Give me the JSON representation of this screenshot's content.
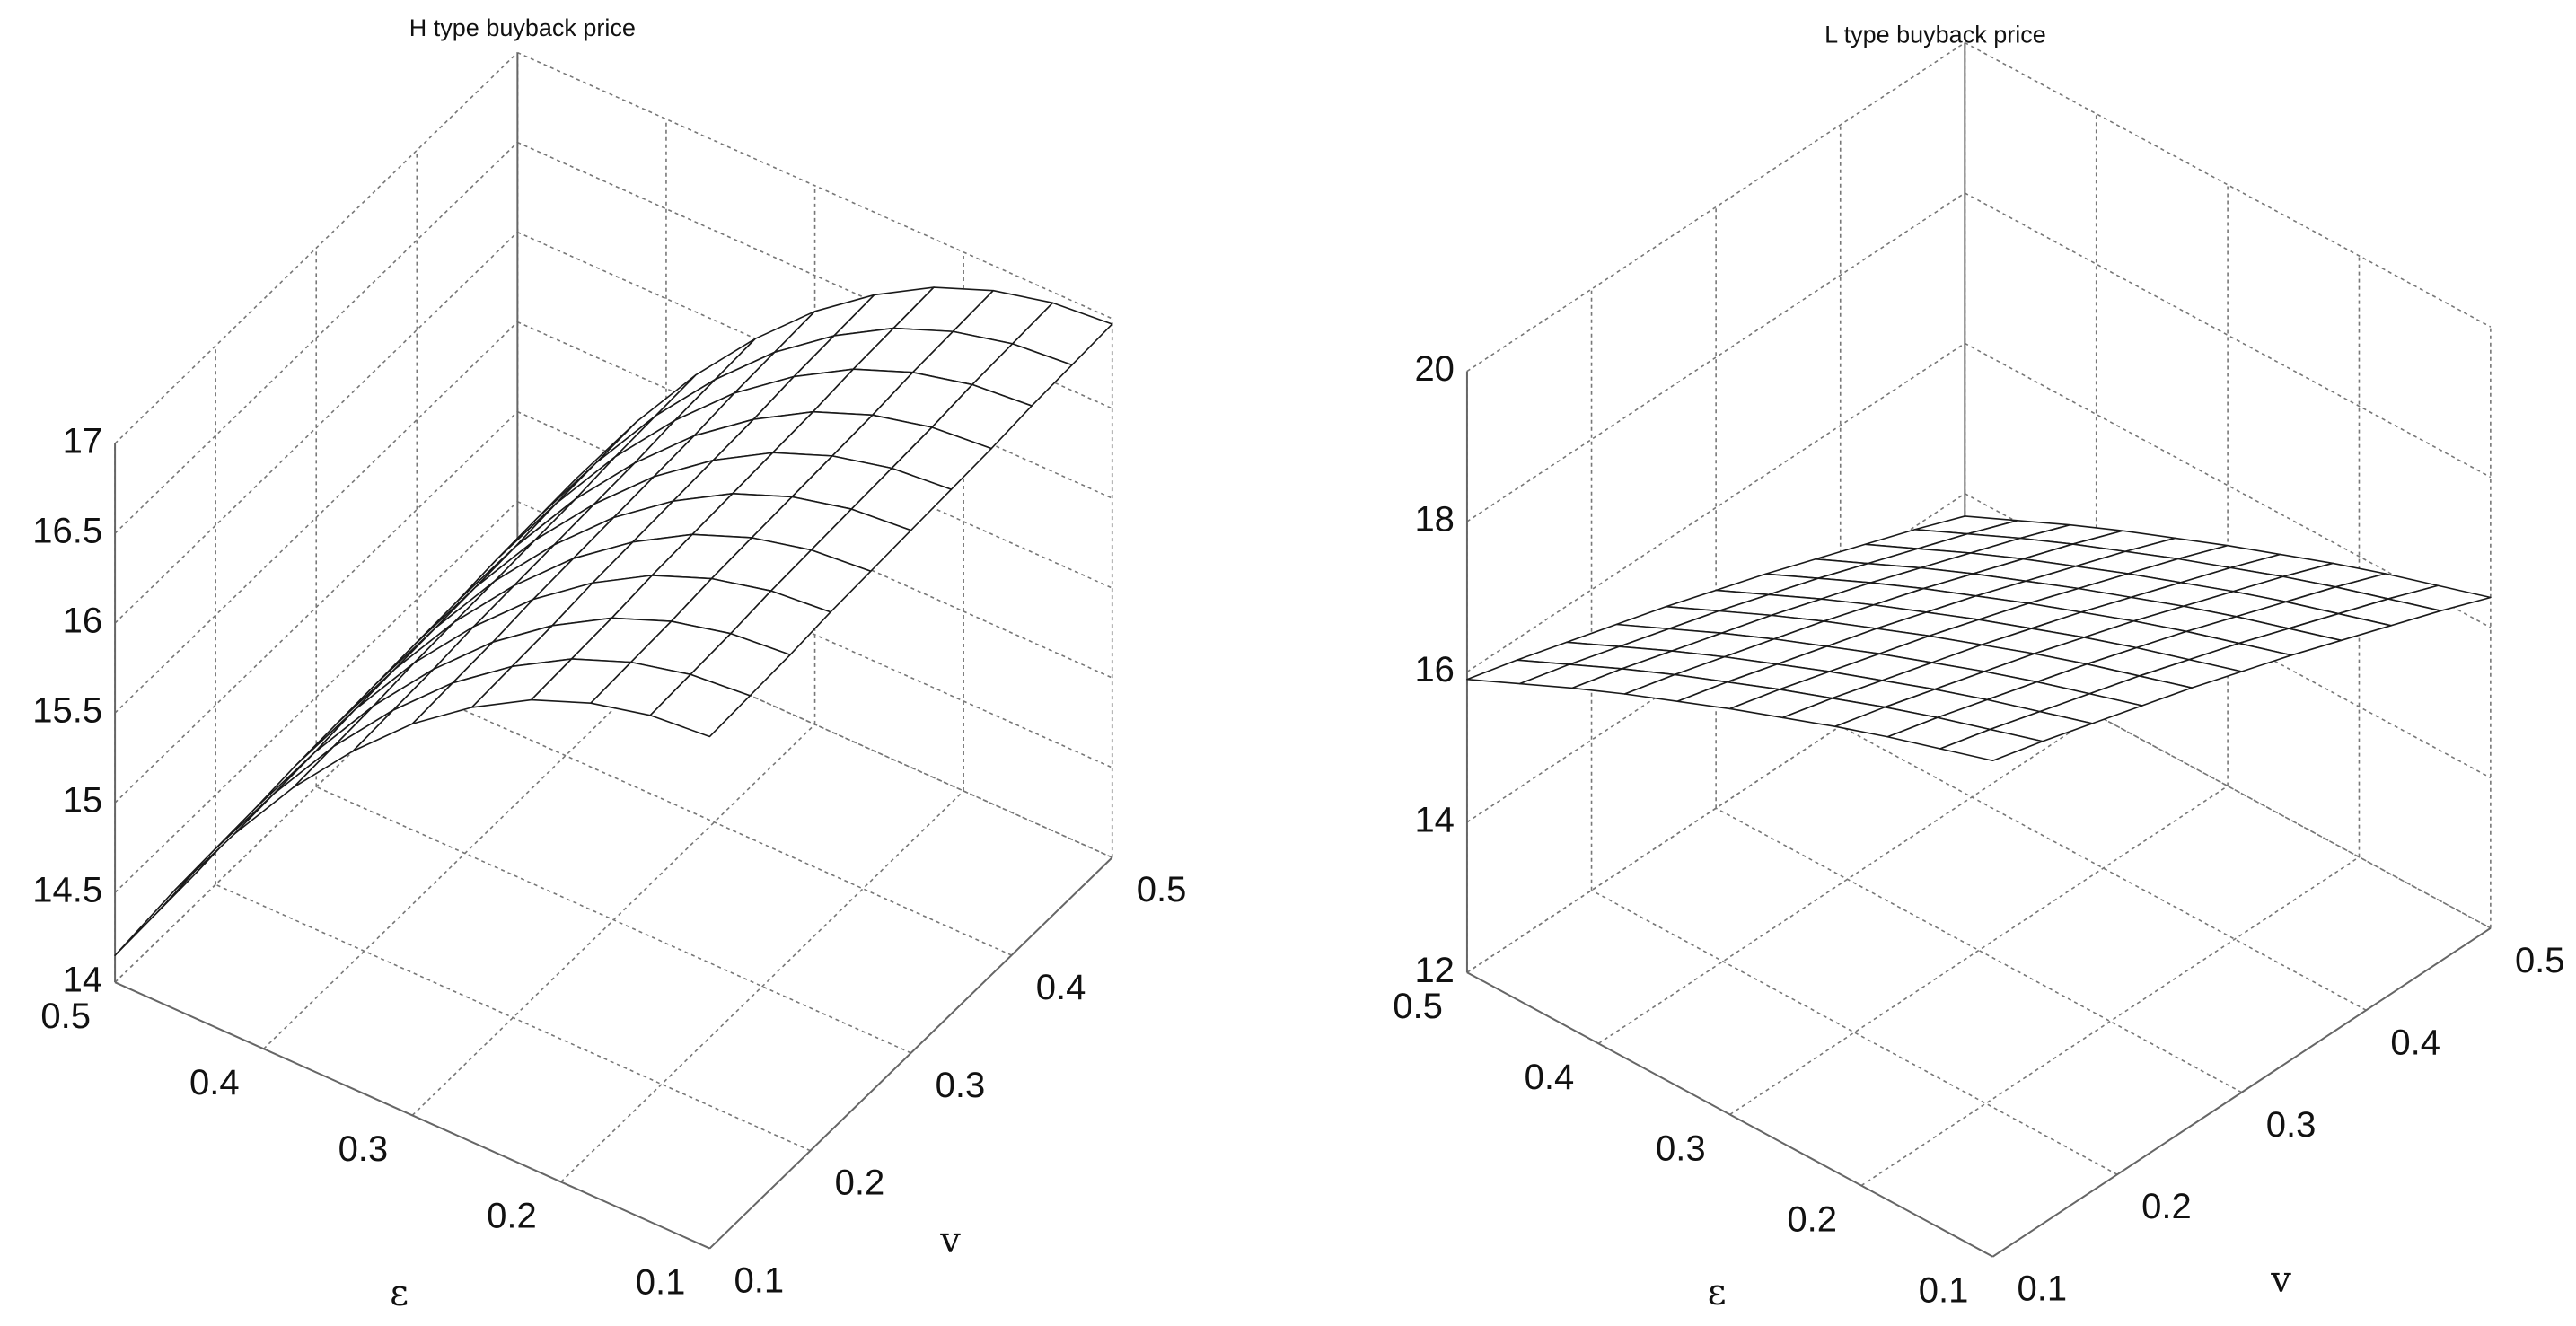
{
  "chart_data": [
    {
      "type": "surface",
      "title": "H type buyback price",
      "xlabel": "ε",
      "ylabel": "v",
      "color": "#1a1a1a",
      "grid": true,
      "x": [
        0.1,
        0.14,
        0.18,
        0.22,
        0.26,
        0.3,
        0.34,
        0.38,
        0.42,
        0.46,
        0.5
      ],
      "y": [
        0.1,
        0.14,
        0.18,
        0.22,
        0.26,
        0.3,
        0.34,
        0.38,
        0.42,
        0.46,
        0.5
      ],
      "z": [
        [
          16.85,
          16.82,
          16.74,
          16.61,
          16.42,
          16.18,
          15.88,
          15.53,
          15.12,
          14.66,
          14.15
        ],
        [
          16.86,
          16.83,
          16.75,
          16.62,
          16.43,
          16.19,
          15.89,
          15.54,
          15.13,
          14.67,
          14.16
        ],
        [
          16.87,
          16.84,
          16.76,
          16.63,
          16.44,
          16.2,
          15.9,
          15.55,
          15.14,
          14.68,
          14.17
        ],
        [
          16.89,
          16.86,
          16.78,
          16.65,
          16.46,
          16.22,
          15.92,
          15.57,
          15.16,
          14.7,
          14.19
        ],
        [
          16.9,
          16.87,
          16.79,
          16.66,
          16.47,
          16.23,
          15.93,
          15.58,
          15.17,
          14.71,
          14.2
        ],
        [
          16.91,
          16.88,
          16.8,
          16.67,
          16.48,
          16.24,
          15.94,
          15.59,
          15.18,
          14.72,
          14.21
        ],
        [
          16.92,
          16.89,
          16.81,
          16.68,
          16.49,
          16.25,
          15.95,
          15.6,
          15.19,
          14.73,
          14.22
        ],
        [
          16.93,
          16.9,
          16.82,
          16.69,
          16.5,
          16.26,
          15.96,
          15.61,
          15.2,
          14.74,
          14.23
        ],
        [
          16.95,
          16.92,
          16.84,
          16.71,
          16.52,
          16.28,
          15.98,
          15.63,
          15.22,
          14.76,
          14.25
        ],
        [
          16.96,
          16.93,
          16.85,
          16.72,
          16.53,
          16.29,
          15.99,
          15.64,
          15.23,
          14.77,
          14.26
        ],
        [
          16.97,
          16.94,
          16.86,
          16.73,
          16.54,
          16.3,
          16.0,
          15.65,
          15.24,
          14.78,
          14.27
        ]
      ],
      "xlim": [
        0.1,
        0.5
      ],
      "ylim": [
        0.1,
        0.5
      ],
      "zlim": [
        14,
        17
      ],
      "xticks": [
        0.1,
        0.2,
        0.3,
        0.4,
        0.5
      ],
      "yticks": [
        0.1,
        0.2,
        0.3,
        0.4,
        0.5
      ],
      "zticks": [
        14,
        14.5,
        15,
        15.5,
        16,
        16.5,
        17
      ]
    },
    {
      "type": "surface",
      "title": "L type buyback price",
      "xlabel": "ε",
      "ylabel": "v",
      "color": "#1a1a1a",
      "grid": true,
      "x": [
        0.1,
        0.14,
        0.18,
        0.22,
        0.26,
        0.3,
        0.34,
        0.38,
        0.42,
        0.46,
        0.5
      ],
      "y": [
        0.1,
        0.14,
        0.18,
        0.22,
        0.26,
        0.3,
        0.34,
        0.38,
        0.42,
        0.46,
        0.5
      ],
      "z": [
        [
          18.6,
          18.38,
          18.16,
          17.92,
          17.66,
          17.4,
          17.12,
          16.84,
          16.54,
          16.22,
          15.9
        ],
        [
          18.42,
          18.2,
          17.98,
          17.74,
          17.48,
          17.22,
          16.94,
          16.66,
          16.36,
          16.04,
          15.72
        ],
        [
          18.22,
          18.0,
          17.78,
          17.54,
          17.28,
          17.02,
          16.74,
          16.46,
          16.16,
          15.84,
          15.52
        ],
        [
          18.02,
          17.8,
          17.58,
          17.34,
          17.08,
          16.82,
          16.54,
          16.26,
          15.96,
          15.64,
          15.32
        ],
        [
          17.82,
          17.6,
          17.38,
          17.14,
          16.88,
          16.62,
          16.34,
          16.06,
          15.76,
          15.44,
          15.12
        ],
        [
          17.6,
          17.38,
          17.16,
          16.92,
          16.66,
          16.4,
          16.12,
          15.84,
          15.54,
          15.22,
          14.9
        ],
        [
          17.38,
          17.16,
          16.94,
          16.7,
          16.44,
          16.18,
          15.9,
          15.62,
          15.32,
          15.0,
          14.68
        ],
        [
          17.14,
          16.92,
          16.7,
          16.46,
          16.2,
          15.94,
          15.66,
          15.38,
          15.08,
          14.76,
          14.44
        ],
        [
          16.9,
          16.68,
          16.46,
          16.22,
          15.96,
          15.7,
          15.42,
          15.14,
          14.84,
          14.52,
          14.2
        ],
        [
          16.66,
          16.44,
          16.22,
          15.98,
          15.72,
          15.46,
          15.18,
          14.9,
          14.6,
          14.28,
          13.96
        ],
        [
          16.4,
          16.18,
          15.96,
          15.72,
          15.46,
          15.2,
          14.92,
          14.64,
          14.34,
          14.02,
          13.7
        ]
      ],
      "xlim": [
        0.1,
        0.5
      ],
      "ylim": [
        0.1,
        0.5
      ],
      "zlim": [
        12,
        20
      ],
      "xticks": [
        0.1,
        0.2,
        0.3,
        0.4,
        0.5
      ],
      "yticks": [
        0.1,
        0.2,
        0.3,
        0.4,
        0.5
      ],
      "zticks": [
        12,
        14,
        16,
        18,
        20
      ]
    }
  ]
}
